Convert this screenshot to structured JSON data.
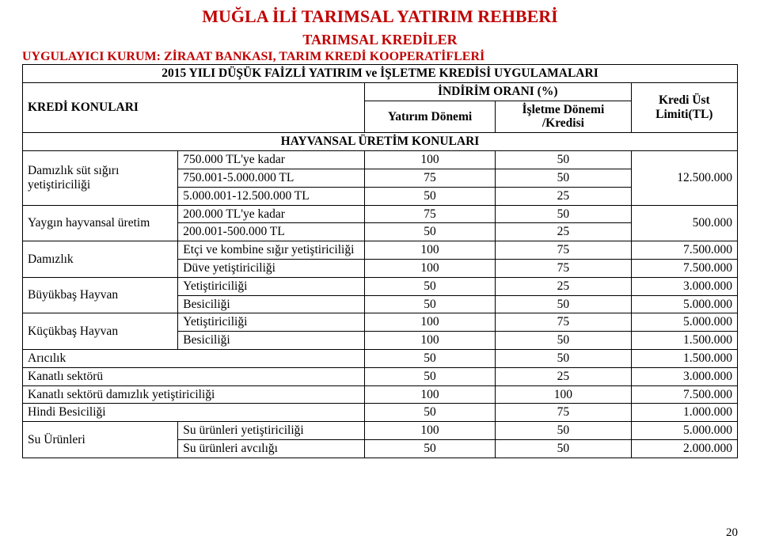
{
  "page": {
    "title": "MUĞLA İLİ TARIMSAL YATIRIM REHBERİ",
    "subtitle": "TARIMSAL KREDİLER",
    "org_line": "UYGULAYICI KURUM: ZİRAAT BANKASI, TARIM KREDİ KOOPERATİFLERİ",
    "number": "20"
  },
  "header": {
    "program": "2015 YILI DÜŞÜK FAİZLİ YATIRIM ve İŞLETME KREDİSİ UYGULAMALARI",
    "topics": "KREDİ KONULARI",
    "discount_group": "İNDİRİM ORANI (%)",
    "invest": "Yatırım Dönemi",
    "operate": "İşletme Dönemi /Kredisi",
    "limit": "Kredi Üst Limiti(TL)"
  },
  "section": {
    "animal": "HAYVANSAL ÜRETİM KONULARI"
  },
  "rows": {
    "r1_label": "Damızlık süt sığırı yetiştiriciliği",
    "r1a_tier": "750.000 TL'ye kadar",
    "r1a_inv": "100",
    "r1a_op": "50",
    "r1b_tier": "750.001-5.000.000 TL",
    "r1b_inv": "75",
    "r1b_op": "50",
    "r1c_tier": "5.000.001-12.500.000 TL",
    "r1c_inv": "50",
    "r1c_op": "25",
    "r1_limit": "12.500.000",
    "r2_label": "Yaygın hayvansal üretim",
    "r2a_tier": "200.000 TL'ye kadar",
    "r2a_inv": "75",
    "r2a_op": "50",
    "r2b_tier": "200.001-500.000 TL",
    "r2b_inv": "50",
    "r2b_op": "25",
    "r2_limit": "500.000",
    "r3_label": "Damızlık",
    "r3a_tier": "Etçi ve kombine sığır yetiştiriciliği",
    "r3a_inv": "100",
    "r3a_op": "75",
    "r3a_limit": "7.500.000",
    "r3b_tier": "Düve yetiştiriciliği",
    "r3b_inv": "100",
    "r3b_op": "75",
    "r3b_limit": "7.500.000",
    "r4_label": "Büyükbaş Hayvan",
    "r4a_tier": "Yetiştiriciliği",
    "r4a_inv": "50",
    "r4a_op": "25",
    "r4a_limit": "3.000.000",
    "r4b_tier": "Besiciliği",
    "r4b_inv": "50",
    "r4b_op": "50",
    "r4b_limit": "5.000.000",
    "r5_label": "Küçükbaş Hayvan",
    "r5a_tier": "Yetiştiriciliği",
    "r5a_inv": "100",
    "r5a_op": "75",
    "r5a_limit": "5.000.000",
    "r5b_tier": "Besiciliği",
    "r5b_inv": "100",
    "r5b_op": "50",
    "r5b_limit": "1.500.000",
    "r6_label": "Arıcılık",
    "r6_inv": "50",
    "r6_op": "50",
    "r6_limit": "1.500.000",
    "r7_label": "Kanatlı sektörü",
    "r7_inv": "50",
    "r7_op": "25",
    "r7_limit": "3.000.000",
    "r8_label": "Kanatlı sektörü damızlık yetiştiriciliği",
    "r8_inv": "100",
    "r8_op": "100",
    "r8_limit": "7.500.000",
    "r9_label": "Hindi Besiciliği",
    "r9_inv": "50",
    "r9_op": "75",
    "r9_limit": "1.000.000",
    "r10_label": "Su Ürünleri",
    "r10a_tier": "Su ürünleri yetiştiriciliği",
    "r10a_inv": "100",
    "r10a_op": "50",
    "r10a_limit": "5.000.000",
    "r10b_tier": "Su ürünleri avcılığı",
    "r10b_inv": "50",
    "r10b_op": "50",
    "r10b_limit": "2.000.000"
  }
}
